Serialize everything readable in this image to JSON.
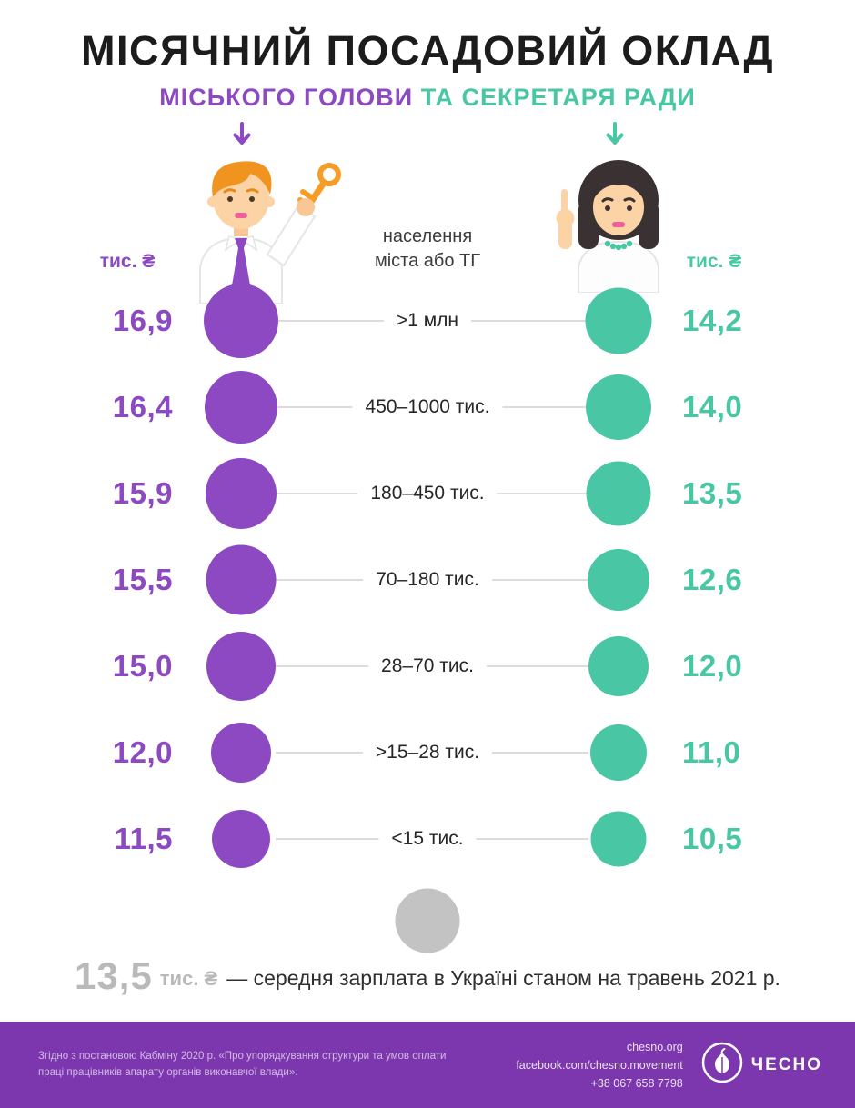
{
  "title": "МІСЯЧНИЙ ПОСАДОВИЙ ОКЛАД",
  "subtitle": {
    "left": "МІСЬКОГО ГОЛОВИ",
    "right": "ТА СЕКРЕТАРЯ РАДИ"
  },
  "units": {
    "left": "тис. ₴",
    "right": "тис. ₴"
  },
  "center_header": {
    "line1": "населення",
    "line2": "міста або ТГ"
  },
  "icons": {
    "left_arrow": "down-arrow-icon",
    "right_arrow": "down-arrow-icon",
    "mayor": "mayor-with-key-illustration",
    "secretary": "secretary-pointing-illustration",
    "logo": "garlic-icon"
  },
  "chart_data": {
    "type": "table",
    "title": "МІСЯЧНИЙ ПОСАДОВИЙ ОКЛАД МІСЬКОГО ГОЛОВИ ТА СЕКРЕТАРЯ РАДИ",
    "categories_label": "населення міста або ТГ",
    "categories": [
      ">1 млн",
      "450–1000 тис.",
      "180–450 тис.",
      "70–180 тис.",
      "28–70 тис.",
      ">15–28 тис.",
      "<15 тис."
    ],
    "series": [
      {
        "name": "міський голова",
        "unit": "тис. ₴",
        "color": "#8c49c2",
        "values": [
          16.9,
          16.4,
          15.9,
          15.5,
          15.0,
          12.0,
          11.5
        ]
      },
      {
        "name": "секретар ради",
        "unit": "тис. ₴",
        "color": "#49c6a4",
        "values": [
          14.2,
          14.0,
          13.5,
          12.6,
          12.0,
          11.0,
          10.5
        ]
      }
    ],
    "reference": {
      "value": 13.5,
      "unit": "тис. ₴",
      "label": "середня зарплата в Україні станом на травень 2021 р."
    },
    "legend_position": "none",
    "grid": false
  },
  "rows": [
    {
      "mayor": "16,9",
      "category": ">1 млн",
      "secretary": "14,2"
    },
    {
      "mayor": "16,4",
      "category": "450–1000 тис.",
      "secretary": "14,0"
    },
    {
      "mayor": "15,9",
      "category": "180–450 тис.",
      "secretary": "13,5"
    },
    {
      "mayor": "15,5",
      "category": "70–180 тис.",
      "secretary": "12,6"
    },
    {
      "mayor": "15,0",
      "category": "28–70 тис.",
      "secretary": "12,0"
    },
    {
      "mayor": "12,0",
      "category": ">15–28 тис.",
      "secretary": "11,0"
    },
    {
      "mayor": "11,5",
      "category": "<15 тис.",
      "secretary": "10,5"
    }
  ],
  "average": {
    "value": "13,5",
    "unit": "тис. ₴",
    "label": "— середня зарплата в Україні станом на травень 2021 р."
  },
  "footer": {
    "note": "Згідно з постановою Кабміну 2020 р. «Про упорядкування структури та умов оплати праці працівників апарату органів виконавчої влади».",
    "links": [
      "chesno.org",
      "facebook.com/chesno.movement",
      "+38 067 658 7798"
    ],
    "logo_text": "ЧЕСНО"
  },
  "colors": {
    "purple": "#8c49c2",
    "teal": "#49c6a4",
    "gray": "#c3c3c3",
    "graytext": "#b9b9b9",
    "footerbg": "#7c37ae",
    "line": "#dcdcdc",
    "ink": "#1c1c1c"
  }
}
